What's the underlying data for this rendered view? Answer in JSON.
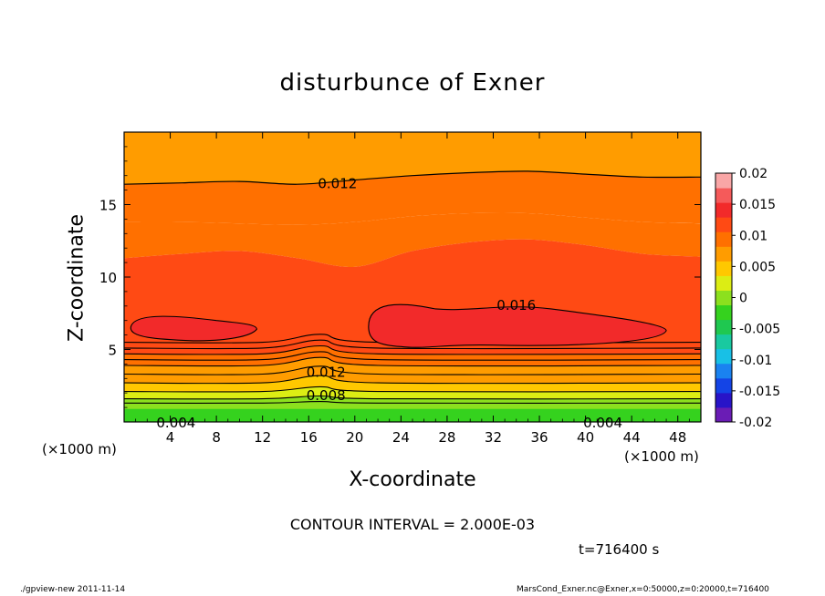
{
  "chart_data": {
    "type": "heatmap",
    "subtype": "filled-contour",
    "title": "disturbunce of Exner",
    "xlabel": "X-coordinate",
    "ylabel": "Z-coordinate",
    "x_unit": "(×1000 m)",
    "xlim": [
      0,
      50
    ],
    "ylim": [
      0,
      20
    ],
    "xticks": [
      4,
      8,
      12,
      16,
      20,
      24,
      28,
      32,
      36,
      40,
      44,
      48
    ],
    "yticks": [
      5,
      10,
      15
    ],
    "colorbar": {
      "ticks": [
        "0.02",
        "0.015",
        "0.01",
        "0.005",
        "0",
        "-0.005",
        "-0.01",
        "-0.015",
        "-0.02"
      ],
      "min": -0.02,
      "max": 0.02,
      "step": 0.0025,
      "colors": [
        "#6a1cb5",
        "#2814c8",
        "#1444e6",
        "#1a82f0",
        "#18c0e6",
        "#19c9a0",
        "#1fc850",
        "#35d21e",
        "#8ce01e",
        "#dced14",
        "#ffc800",
        "#ff9c00",
        "#ff7000",
        "#ff4a14",
        "#f22a2a",
        "#f55a5a",
        "#f9a6a6"
      ]
    },
    "band_values": [
      0.0095,
      0.0105,
      0.0115,
      0.0125,
      0.0135
    ],
    "low_layer_bands": [
      {
        "z": 0.0,
        "value": -0.0005
      },
      {
        "z": 0.4,
        "value": 0.0005
      },
      {
        "z": 0.7,
        "value": 0.0015
      },
      {
        "z": 1.2,
        "value": 0.0035
      },
      {
        "z": 1.8,
        "value": 0.0055
      },
      {
        "z": 2.4,
        "value": 0.0075
      },
      {
        "z": 3.0,
        "value": 0.0095
      },
      {
        "z": 3.4,
        "value": 0.0105
      },
      {
        "z": 3.8,
        "value": 0.0115
      },
      {
        "z": 4.2,
        "value": 0.0125
      },
      {
        "z": 4.6,
        "value": 0.0135
      }
    ],
    "contour_labels": [
      {
        "text": "0.012",
        "x": 18.5,
        "z": 16.5
      },
      {
        "text": "0.016",
        "x": 34.0,
        "z": 8.1
      },
      {
        "text": "0.012",
        "x": 17.5,
        "z": 3.5
      },
      {
        "text": "0.008",
        "x": 17.5,
        "z": 1.9
      },
      {
        "text": "0.004",
        "x": 4.5,
        "z": 0.0
      },
      {
        "text": "0.004",
        "x": 41.5,
        "z": 0.0
      }
    ]
  },
  "x_unit_right": "(×1000 m)",
  "y_unit": "",
  "contour_interval": "CONTOUR INTERVAL = 2.000E-03",
  "time_label": "t=716400  s",
  "footer_left": "./gpview-new   2011-11-14",
  "footer_right": "MarsCond_Exner.nc@Exner,x=0:50000,z=0:20000,t=716400"
}
